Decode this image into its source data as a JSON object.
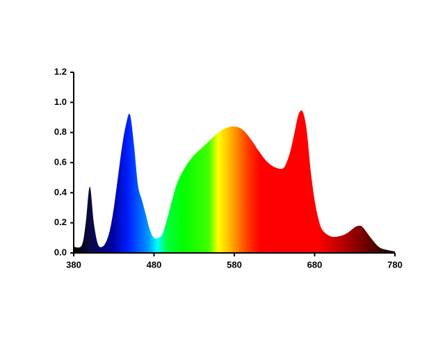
{
  "chart_data": {
    "type": "area",
    "x": [
      380,
      390,
      395,
      400,
      405,
      410,
      415,
      420,
      425,
      430,
      435,
      440,
      445,
      450,
      455,
      460,
      465,
      470,
      475,
      480,
      485,
      490,
      495,
      500,
      505,
      510,
      520,
      530,
      540,
      550,
      560,
      570,
      580,
      590,
      600,
      610,
      620,
      630,
      640,
      645,
      650,
      655,
      660,
      665,
      670,
      675,
      680,
      685,
      690,
      700,
      710,
      720,
      730,
      735,
      740,
      750,
      760,
      770,
      780
    ],
    "values": [
      0.04,
      0.05,
      0.2,
      0.44,
      0.2,
      0.06,
      0.04,
      0.07,
      0.15,
      0.3,
      0.5,
      0.7,
      0.85,
      0.92,
      0.72,
      0.45,
      0.35,
      0.25,
      0.15,
      0.1,
      0.1,
      0.12,
      0.2,
      0.3,
      0.4,
      0.48,
      0.58,
      0.65,
      0.7,
      0.75,
      0.8,
      0.83,
      0.84,
      0.82,
      0.76,
      0.68,
      0.61,
      0.57,
      0.56,
      0.6,
      0.68,
      0.8,
      0.92,
      0.94,
      0.82,
      0.55,
      0.35,
      0.22,
      0.15,
      0.11,
      0.11,
      0.13,
      0.17,
      0.18,
      0.17,
      0.1,
      0.04,
      0.02,
      0.01
    ],
    "xlim": [
      380,
      780
    ],
    "xticks": [
      380,
      480,
      580,
      680,
      780
    ],
    "ylim": [
      0,
      1.2
    ],
    "yticks": [
      {
        "value": 0,
        "label": "0.0"
      },
      0.2,
      0.4,
      0.6,
      0.8,
      {
        "value": 1,
        "label": "1.0"
      },
      1.2
    ],
    "grid": false
  }
}
